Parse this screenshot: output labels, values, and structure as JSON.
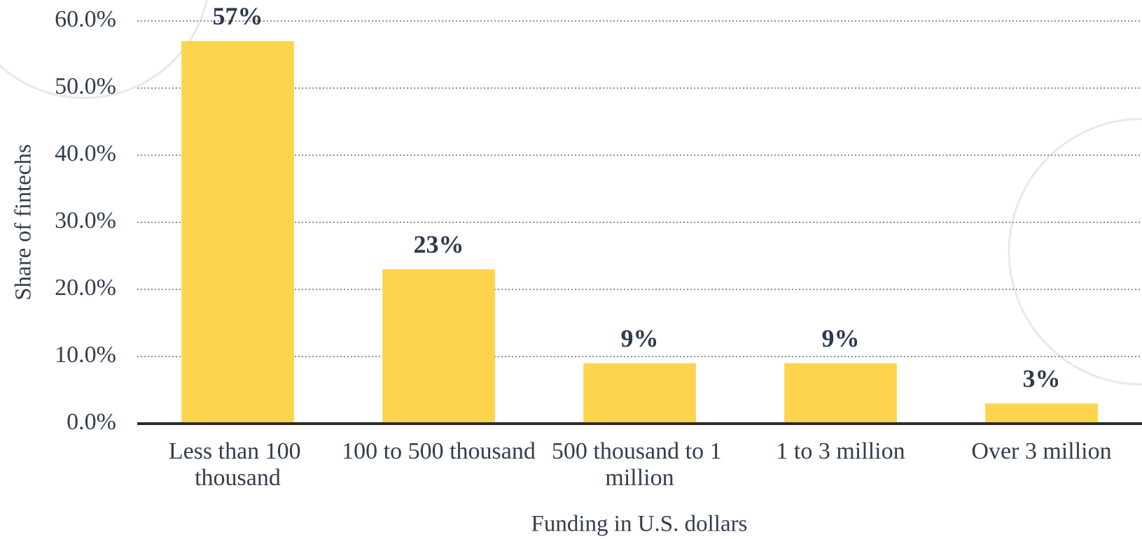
{
  "chart_data": {
    "type": "bar",
    "categories": [
      "Less than 100 thousand",
      "100 to 500 thousand",
      "500 thousand to 1 million",
      "1 to 3 million",
      "Over 3 million"
    ],
    "values": [
      57,
      23,
      9,
      9,
      3
    ],
    "value_labels": [
      "57%",
      "23%",
      "9%",
      "9%",
      "3%"
    ],
    "color": "#fdd44d",
    "ylim": [
      0,
      60
    ],
    "yticks": [
      {
        "value": 0,
        "label": "0.0%"
      },
      {
        "value": 10,
        "label": "10.0%"
      },
      {
        "value": 20,
        "label": "20.0%"
      },
      {
        "value": 30,
        "label": "30.0%"
      },
      {
        "value": 40,
        "label": "40.0%"
      },
      {
        "value": 50,
        "label": "50.0%"
      },
      {
        "value": 60,
        "label": "60.0%"
      }
    ],
    "ylabel": "Share of fintechs",
    "xlabel": "Funding in U.S. dollars",
    "grid": true
  }
}
